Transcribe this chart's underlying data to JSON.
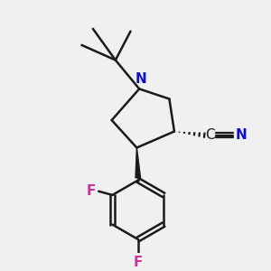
{
  "bg_color": "#f0f0f0",
  "bond_color": "#1a1a1a",
  "N_color": "#1010cc",
  "F_color": "#cc3399",
  "line_width": 1.8,
  "fig_size": [
    3.0,
    3.0
  ],
  "dpi": 100,
  "xlim": [
    0,
    10
  ],
  "ylim": [
    0,
    10
  ]
}
